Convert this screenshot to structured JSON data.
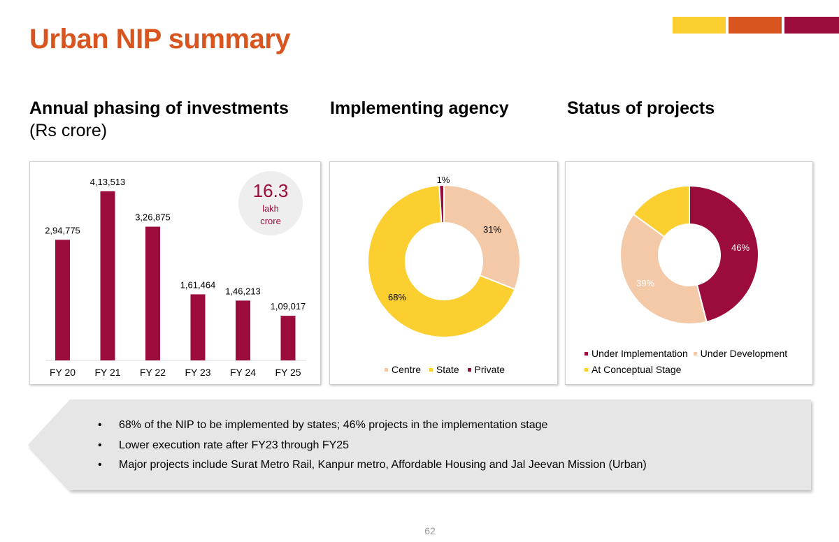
{
  "page": {
    "title": "Urban NIP summary",
    "page_number": "62",
    "accent_colors": [
      "#fccf31",
      "#d8551f",
      "#9b0b3c"
    ]
  },
  "sections": {
    "investments": {
      "title": "Annual phasing of investments",
      "subtitle": "(Rs crore)"
    },
    "agency": {
      "title": "Implementing agency"
    },
    "status": {
      "title": "Status of projects"
    }
  },
  "badge": {
    "value": "16.3",
    "unit_line1": "lakh",
    "unit_line2": "crore"
  },
  "chart_data": [
    {
      "type": "bar",
      "title": "Annual phasing of investments (Rs crore)",
      "categories": [
        "FY 20",
        "FY 21",
        "FY 22",
        "FY 23",
        "FY 24",
        "FY 25"
      ],
      "values": [
        294775,
        413513,
        326875,
        161464,
        146213,
        109017
      ],
      "value_labels": [
        "2,94,775",
        "4,13,513",
        "3,26,875",
        "1,61,464",
        "1,46,213",
        "1,09,017"
      ],
      "color": "#9b0b3c",
      "ylim": [
        0,
        420000
      ]
    },
    {
      "type": "pie",
      "title": "Implementing agency",
      "donut": true,
      "labels": [
        "Centre",
        "State",
        "Private"
      ],
      "values": [
        31,
        68,
        1
      ],
      "value_labels": [
        "31%",
        "68%",
        "1%"
      ],
      "colors": [
        "#f4c9a8",
        "#fccf31",
        "#9b0b3c"
      ],
      "legend_position": "bottom"
    },
    {
      "type": "pie",
      "title": "Status of projects",
      "donut": true,
      "labels": [
        "Under Implementation",
        "Under Development",
        "At Conceptual Stage"
      ],
      "values": [
        46,
        39,
        15
      ],
      "value_labels": [
        "46%",
        "39%",
        ""
      ],
      "colors": [
        "#9b0b3c",
        "#f4c9a8",
        "#fccf31"
      ],
      "legend_position": "bottom"
    }
  ],
  "callout": {
    "bullets": [
      "68% of the NIP to be implemented by states; 46% projects in the implementation stage",
      "Lower execution rate after FY23 through FY25",
      "Major projects include Surat Metro Rail, Kanpur metro, Affordable Housing and Jal Jeevan Mission (Urban)"
    ]
  }
}
